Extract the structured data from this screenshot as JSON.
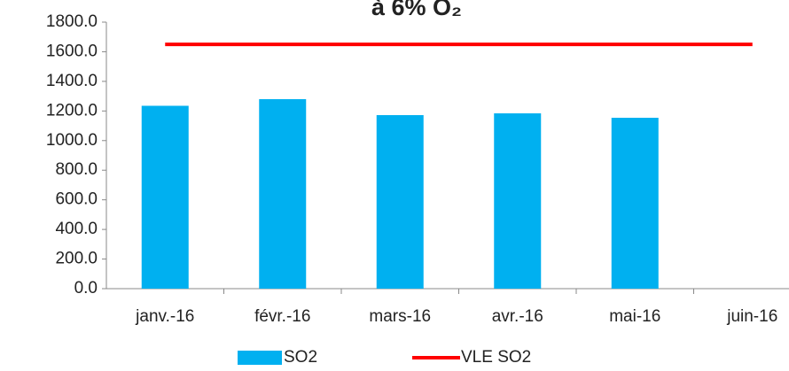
{
  "chart_data": {
    "type": "bar",
    "title": "à 6% O₂",
    "categories": [
      "janv.-16",
      "févr.-16",
      "mars-16",
      "avr.-16",
      "mai-16",
      "juin-16"
    ],
    "series": [
      {
        "name": "SO2",
        "type": "bar",
        "color": "#00b0f0",
        "values": [
          1235,
          1280,
          1172,
          1184,
          1154,
          null
        ]
      },
      {
        "name": "VLE SO2",
        "type": "line",
        "color": "#ff0000",
        "values": [
          1650,
          1650,
          1650,
          1650,
          1650,
          1650
        ]
      }
    ],
    "ylim": [
      0,
      1800
    ],
    "yticks": [
      {
        "value": 0,
        "label": "0.0"
      },
      {
        "value": 200,
        "label": "200.0"
      },
      {
        "value": 400,
        "label": "400.0"
      },
      {
        "value": 600,
        "label": "600.0"
      },
      {
        "value": 800,
        "label": "800.0"
      },
      {
        "value": 1000,
        "label": "1000.0"
      },
      {
        "value": 1200,
        "label": "1200.0"
      },
      {
        "value": 1400,
        "label": "1400.0"
      },
      {
        "value": 1600,
        "label": "1600.0"
      },
      {
        "value": 1800,
        "label": "1800.0"
      }
    ],
    "legend": "bottom"
  }
}
